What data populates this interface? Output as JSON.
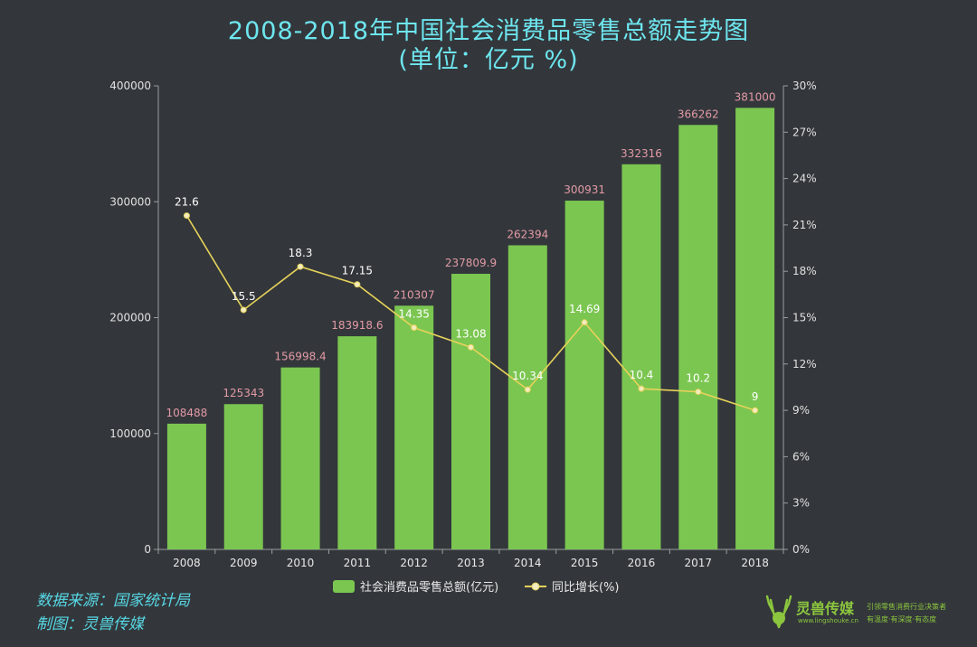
{
  "header": {
    "title_line1": "2008-2018年中国社会消费品零售总额走势图",
    "title_line2": "(单位：亿元 %)"
  },
  "footer": {
    "source": "数据来源：国家统计局",
    "maker": "制图：灵兽传媒"
  },
  "logo": {
    "name": "灵兽传媒",
    "url": "www.lingshouke.cn",
    "tagline1": "引领零售消费行业决策者",
    "tagline2": "有温度·有深度·有态度"
  },
  "colors": {
    "background": "#33373b",
    "bar": "#7bc651",
    "line": "#e6d25a",
    "bar_label": "#e39aa6",
    "title": "#6ee6ef"
  },
  "chart_data": {
    "type": "bar",
    "categories": [
      "2008",
      "2009",
      "2010",
      "2011",
      "2012",
      "2013",
      "2014",
      "2015",
      "2016",
      "2017",
      "2018"
    ],
    "series": [
      {
        "name": "社会消费品零售总额(亿元)",
        "type": "bar",
        "axis": "left",
        "values": [
          108488,
          125343,
          156998.4,
          183918.6,
          210307,
          237809.9,
          262394,
          300931,
          332316,
          366262,
          381000
        ],
        "labels": [
          "108488",
          "125343",
          "156998.4",
          "183918.6",
          "210307",
          "237809.9",
          "262394",
          "300931",
          "332316",
          "366262",
          "381000"
        ]
      },
      {
        "name": "同比增长(%)",
        "type": "line",
        "axis": "right",
        "values": [
          21.6,
          15.5,
          18.3,
          17.15,
          14.35,
          13.08,
          10.34,
          14.69,
          10.4,
          10.2,
          9
        ],
        "labels": [
          "21.6",
          "15.5",
          "18.3",
          "17.15",
          "14.35",
          "13.08",
          "10.34",
          "14.69",
          "10.4",
          "10.2",
          "9"
        ]
      }
    ],
    "left_axis": {
      "ylim": [
        0,
        400000
      ],
      "ticks": [
        0,
        100000,
        200000,
        300000,
        400000
      ],
      "tick_labels": [
        "0",
        "100000",
        "200000",
        "300000",
        "400000"
      ]
    },
    "right_axis": {
      "ylim": [
        0,
        30
      ],
      "ticks": [
        0,
        3,
        6,
        9,
        12,
        15,
        18,
        21,
        24,
        27,
        30
      ],
      "tick_labels": [
        "0%",
        "3%",
        "6%",
        "9%",
        "12%",
        "15%",
        "18%",
        "21%",
        "24%",
        "27%",
        "30%"
      ]
    },
    "grid": false,
    "legend": "bottom"
  }
}
